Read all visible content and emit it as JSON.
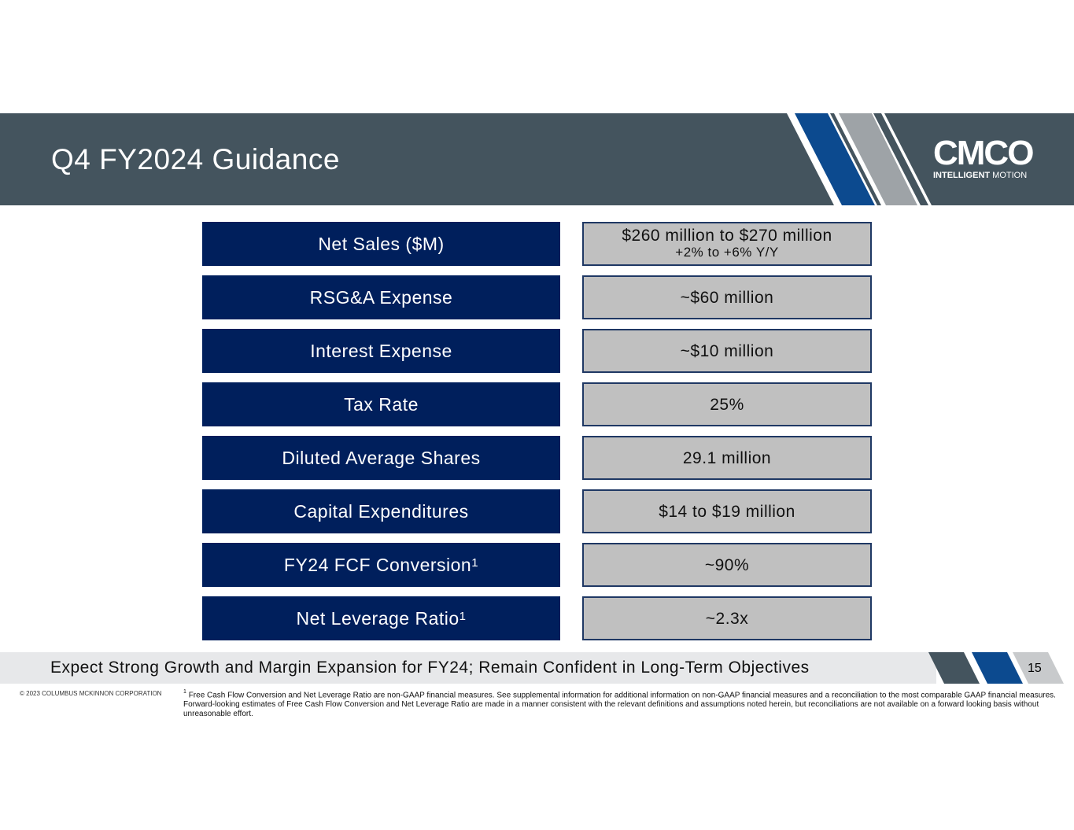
{
  "header": {
    "title": "Q4 FY2024 Guidance",
    "logo": "CMCO",
    "logo_tagline_bold": "INTELLIGENT",
    "logo_tagline": "MOTION"
  },
  "table": {
    "rows": [
      [
        "Net Sales ($M)",
        "$260 million to $270 million",
        "+2% to +6% Y/Y"
      ],
      [
        "RSG&A Expense",
        "~$60 million"
      ],
      [
        "Interest Expense",
        "~$10 million"
      ],
      [
        "Tax Rate",
        "25%"
      ],
      [
        "Diluted Average Shares",
        "29.1 million"
      ],
      [
        "Capital Expenditures",
        "$14 to $19 million"
      ],
      [
        "FY24 FCF Conversion",
        "~90%",
        "1"
      ],
      [
        "Net Leverage Ratio",
        "~2.3x",
        "1"
      ]
    ]
  },
  "banner": "Expect Strong Growth and Margin Expansion for FY24; Remain Confident in Long-Term Objectives",
  "page_number": "15",
  "footer": {
    "copyright": "© 2023 COLUMBUS MCKINNON CORPORATION",
    "note_marker": "1",
    "note": "Free Cash Flow Conversion and Net Leverage Ratio are non-GAAP financial measures. See supplemental information for additional information on non-GAAP financial measures and a reconciliation to the most comparable GAAP financial measures. Forward-looking estimates of Free Cash Flow Conversion and Net Leverage Ratio are made in a manner consistent with the relevant definitions and assumptions noted herein, but reconciliations are not available on a forward looking basis without unreasonable effort."
  }
}
